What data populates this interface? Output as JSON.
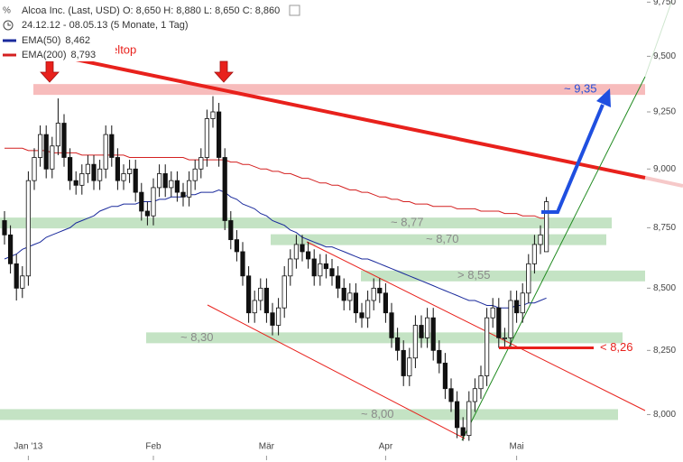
{
  "chart_data": {
    "type": "candlestick",
    "title": "Alcoa Inc. (Last, USD)",
    "quote": "O: 8,650  H: 8,880  L: 8,650  C: 8,860",
    "period": "24.12.12 - 08.05.13 (5 Monate, 1 Tag)",
    "annotation": "Doppeltop",
    "annotation_color": "#e8211c",
    "log_scale": true,
    "ylim": [
      7.82,
      9.76
    ],
    "yticks": [
      {
        "value": 8.0,
        "label": "8,000"
      },
      {
        "value": 8.25,
        "label": "8,250"
      },
      {
        "value": 8.5,
        "label": "8,500"
      },
      {
        "value": 8.75,
        "label": "8,750"
      },
      {
        "value": 9.0,
        "label": "9,000"
      },
      {
        "value": 9.25,
        "label": "9,250"
      },
      {
        "value": 9.5,
        "label": "9,500"
      },
      {
        "value": 9.75,
        "label": "9,750"
      }
    ],
    "categories": [
      null,
      null,
      null,
      null,
      "Jan '13",
      null,
      null,
      null,
      null,
      null,
      null,
      null,
      null,
      null,
      null,
      null,
      null,
      null,
      null,
      null,
      null,
      null,
      null,
      null,
      null,
      "Feb",
      null,
      null,
      null,
      null,
      null,
      null,
      null,
      null,
      null,
      null,
      null,
      null,
      null,
      null,
      null,
      null,
      null,
      null,
      "Mär",
      null,
      null,
      null,
      null,
      null,
      null,
      null,
      null,
      null,
      null,
      null,
      null,
      null,
      null,
      null,
      null,
      null,
      null,
      null,
      "Apr",
      null,
      null,
      null,
      null,
      null,
      null,
      null,
      null,
      null,
      null,
      null,
      null,
      null,
      null,
      null,
      null,
      null,
      null,
      null,
      null,
      null,
      "Mai",
      null,
      null,
      null,
      null,
      null
    ],
    "open": [
      8.78,
      8.72,
      8.6,
      8.5,
      8.55,
      8.95,
      9.05,
      9.15,
      9.0,
      9.1,
      9.2,
      9.05,
      8.95,
      8.93,
      8.98,
      9.02,
      8.95,
      9.0,
      9.15,
      9.05,
      8.95,
      8.98,
      9.0,
      8.9,
      8.82,
      8.8,
      8.92,
      8.98,
      8.92,
      8.95,
      8.9,
      8.88,
      8.95,
      9.0,
      9.05,
      9.22,
      9.25,
      9.05,
      8.78,
      8.7,
      8.65,
      8.55,
      8.4,
      8.45,
      8.5,
      8.4,
      8.35,
      8.42,
      8.55,
      8.62,
      8.68,
      8.65,
      8.62,
      8.55,
      8.6,
      8.58,
      8.55,
      8.5,
      8.45,
      8.48,
      8.4,
      8.38,
      8.45,
      8.5,
      8.48,
      8.4,
      8.3,
      8.25,
      8.15,
      8.22,
      8.35,
      8.3,
      8.38,
      8.25,
      8.2,
      8.1,
      8.05,
      7.95,
      7.92,
      8.05,
      8.1,
      8.15,
      8.38,
      8.42,
      8.3,
      8.3,
      8.45,
      8.4,
      8.48,
      8.6,
      8.68,
      8.65
    ],
    "high": [
      8.82,
      8.76,
      8.64,
      8.59,
      8.99,
      9.09,
      9.19,
      9.19,
      9.14,
      9.31,
      9.24,
      9.09,
      8.99,
      9.02,
      9.06,
      9.06,
      9.04,
      9.19,
      9.19,
      9.09,
      9.02,
      9.04,
      9.04,
      8.94,
      8.86,
      8.96,
      9.02,
      9.02,
      8.99,
      8.99,
      8.94,
      8.99,
      9.04,
      9.09,
      9.26,
      9.32,
      9.29,
      9.09,
      8.82,
      8.74,
      8.69,
      8.59,
      8.49,
      8.54,
      8.54,
      8.44,
      8.46,
      8.59,
      8.66,
      8.72,
      8.72,
      8.69,
      8.66,
      8.64,
      8.64,
      8.62,
      8.59,
      8.54,
      8.52,
      8.52,
      8.44,
      8.49,
      8.54,
      8.54,
      8.52,
      8.44,
      8.34,
      8.29,
      8.26,
      8.39,
      8.39,
      8.42,
      8.42,
      8.29,
      8.24,
      8.14,
      8.09,
      7.99,
      8.09,
      8.14,
      8.19,
      8.42,
      8.46,
      8.46,
      8.34,
      8.49,
      8.49,
      8.52,
      8.64,
      8.72,
      8.76,
      8.88
    ],
    "low": [
      8.68,
      8.56,
      8.45,
      8.46,
      8.51,
      8.91,
      9.01,
      8.96,
      8.96,
      9.06,
      9.01,
      8.91,
      8.89,
      8.89,
      8.94,
      8.91,
      8.91,
      8.96,
      9.01,
      8.91,
      8.91,
      8.94,
      8.86,
      8.78,
      8.76,
      8.76,
      8.88,
      8.88,
      8.88,
      8.86,
      8.84,
      8.84,
      8.91,
      8.96,
      9.01,
      9.18,
      9.01,
      8.74,
      8.66,
      8.61,
      8.51,
      8.36,
      8.36,
      8.41,
      8.36,
      8.31,
      8.31,
      8.38,
      8.51,
      8.58,
      8.61,
      8.58,
      8.51,
      8.51,
      8.54,
      8.51,
      8.46,
      8.41,
      8.41,
      8.36,
      8.34,
      8.34,
      8.41,
      8.44,
      8.36,
      8.26,
      8.21,
      8.11,
      8.11,
      8.18,
      8.26,
      8.26,
      8.21,
      8.16,
      8.06,
      8.01,
      7.91,
      7.9,
      7.9,
      8.01,
      8.06,
      8.11,
      8.34,
      8.26,
      8.26,
      8.26,
      8.36,
      8.36,
      8.44,
      8.56,
      8.64,
      8.65
    ],
    "close": [
      8.72,
      8.6,
      8.5,
      8.55,
      8.95,
      9.05,
      9.15,
      9.0,
      9.1,
      9.2,
      9.05,
      8.95,
      8.93,
      8.98,
      9.02,
      8.95,
      9.0,
      9.15,
      9.05,
      8.95,
      8.98,
      9.0,
      8.9,
      8.82,
      8.8,
      8.92,
      8.98,
      8.92,
      8.95,
      8.9,
      8.88,
      8.95,
      9.0,
      9.05,
      9.22,
      9.25,
      9.05,
      8.78,
      8.7,
      8.65,
      8.55,
      8.4,
      8.45,
      8.5,
      8.4,
      8.35,
      8.42,
      8.55,
      8.62,
      8.68,
      8.65,
      8.62,
      8.55,
      8.6,
      8.58,
      8.55,
      8.5,
      8.45,
      8.48,
      8.4,
      8.38,
      8.45,
      8.5,
      8.48,
      8.4,
      8.3,
      8.25,
      8.15,
      8.22,
      8.35,
      8.3,
      8.38,
      8.25,
      8.2,
      8.1,
      8.05,
      7.95,
      7.92,
      8.05,
      8.1,
      8.15,
      8.38,
      8.42,
      8.3,
      8.3,
      8.45,
      8.4,
      8.48,
      8.6,
      8.68,
      8.72,
      8.86
    ],
    "series": [
      {
        "name": "EMA(50)",
        "legend_value": "8,462",
        "color": "#1a2a9c",
        "values": [
          8.62,
          8.63,
          8.64,
          8.66,
          8.67,
          8.68,
          8.69,
          8.71,
          8.72,
          8.73,
          8.74,
          8.75,
          8.77,
          8.78,
          8.79,
          8.8,
          8.82,
          8.83,
          8.84,
          8.84,
          8.85,
          8.85,
          8.85,
          8.86,
          8.86,
          8.86,
          8.87,
          8.87,
          8.88,
          8.88,
          8.88,
          8.89,
          8.89,
          8.9,
          8.9,
          8.9,
          8.91,
          8.9,
          8.88,
          8.87,
          8.85,
          8.84,
          8.83,
          8.81,
          8.8,
          8.78,
          8.77,
          8.76,
          8.74,
          8.73,
          8.71,
          8.7,
          8.69,
          8.68,
          8.67,
          8.67,
          8.66,
          8.65,
          8.64,
          8.63,
          8.62,
          8.62,
          8.61,
          8.6,
          8.59,
          8.58,
          8.57,
          8.56,
          8.55,
          8.54,
          8.53,
          8.52,
          8.51,
          8.5,
          8.49,
          8.48,
          8.47,
          8.46,
          8.45,
          8.45,
          8.44,
          8.43,
          8.43,
          8.42,
          8.42,
          8.42,
          8.43,
          8.43,
          8.44,
          8.44,
          8.45,
          8.46
        ]
      },
      {
        "name": "EMA(200)",
        "legend_value": "8,793",
        "color": "#d42020",
        "values": [
          9.09,
          9.09,
          9.09,
          9.09,
          9.08,
          9.08,
          9.08,
          9.08,
          9.07,
          9.07,
          9.07,
          9.07,
          9.07,
          9.06,
          9.06,
          9.06,
          9.06,
          9.06,
          9.06,
          9.06,
          9.06,
          9.05,
          9.05,
          9.05,
          9.05,
          9.05,
          9.05,
          9.05,
          9.05,
          9.05,
          9.05,
          9.04,
          9.04,
          9.04,
          9.04,
          9.04,
          9.04,
          9.04,
          9.03,
          9.03,
          9.02,
          9.02,
          9.01,
          9.0,
          9.0,
          8.99,
          8.99,
          8.98,
          8.98,
          8.97,
          8.96,
          8.96,
          8.95,
          8.94,
          8.94,
          8.93,
          8.93,
          8.92,
          8.91,
          8.91,
          8.9,
          8.9,
          8.89,
          8.88,
          8.88,
          8.87,
          8.87,
          8.86,
          8.86,
          8.85,
          8.85,
          8.85,
          8.84,
          8.84,
          8.84,
          8.84,
          8.83,
          8.83,
          8.83,
          8.83,
          8.82,
          8.82,
          8.82,
          8.82,
          8.81,
          8.81,
          8.81,
          8.8,
          8.8,
          8.8,
          8.79,
          8.79
        ]
      }
    ],
    "levels": [
      {
        "value": 9.35,
        "label": "~ 9,35",
        "color": "#f7bcbc",
        "label_color": "#2450d8"
      },
      {
        "value": 8.77,
        "label": "~ 8,77",
        "color": "#c4e3c4",
        "label_color": "#8a8a8a"
      },
      {
        "value": 8.7,
        "label": "~ 8,70",
        "color": "#c4e3c4",
        "label_color": "#8a8a8a"
      },
      {
        "value": 8.55,
        "label": "> 8,55",
        "color": "#c4e3c4",
        "label_color": "#8a8a8a"
      },
      {
        "value": 8.3,
        "label": "~ 8,30",
        "color": "#c4e3c4",
        "label_color": "#8a8a8a"
      },
      {
        "value": 8.0,
        "label": "~ 8,00",
        "color": "#c4e3c4",
        "label_color": "#8a8a8a"
      },
      {
        "value": 8.26,
        "label": "< 8,26",
        "color": "#e8211c",
        "label_color": "#e8211c"
      }
    ]
  }
}
